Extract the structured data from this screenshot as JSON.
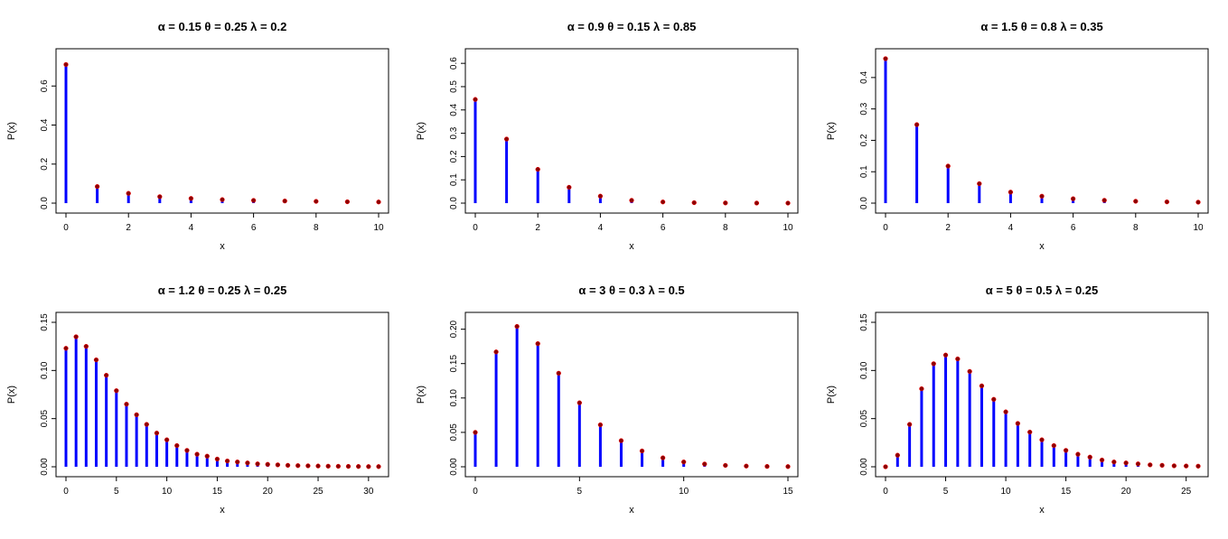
{
  "chart_data": [
    {
      "type": "bar",
      "title": "α = 0.15  θ = 0.25  λ = 0.2",
      "xlabel": "x",
      "ylabel": "P(x)",
      "xlim": [
        0,
        10
      ],
      "ylim": [
        0,
        0.74
      ],
      "xticks": [
        0,
        2,
        4,
        6,
        8,
        10
      ],
      "yticks": [
        0.0,
        0.2,
        0.4,
        0.6
      ],
      "ytick_labels": [
        "0.0",
        "0.2",
        "0.4",
        "0.6"
      ],
      "x": [
        0,
        1,
        2,
        3,
        4,
        5,
        6,
        7,
        8,
        9,
        10
      ],
      "values": [
        0.71,
        0.085,
        0.05,
        0.033,
        0.024,
        0.018,
        0.014,
        0.011,
        0.009,
        0.007,
        0.006
      ]
    },
    {
      "type": "bar",
      "title": "α = 0.9  θ = 0.15  λ = 0.85",
      "xlabel": "x",
      "ylabel": "P(x)",
      "xlim": [
        0,
        10
      ],
      "ylim": [
        0,
        0.62
      ],
      "xticks": [
        0,
        2,
        4,
        6,
        8,
        10
      ],
      "yticks": [
        0.0,
        0.1,
        0.2,
        0.3,
        0.4,
        0.5,
        0.6
      ],
      "ytick_labels": [
        "0.0",
        "0.1",
        "0.2",
        "0.3",
        "0.4",
        "0.5",
        "0.6"
      ],
      "x": [
        0,
        1,
        2,
        3,
        4,
        5,
        6,
        7,
        8,
        9,
        10
      ],
      "values": [
        0.445,
        0.275,
        0.145,
        0.068,
        0.03,
        0.012,
        0.005,
        0.002,
        0.0008,
        0.0003,
        0.0001
      ]
    },
    {
      "type": "bar",
      "title": "α = 1.5  θ = 0.8  λ = 0.35",
      "xlabel": "x",
      "ylabel": "P(x)",
      "xlim": [
        0,
        10
      ],
      "ylim": [
        0,
        0.46
      ],
      "xticks": [
        0,
        2,
        4,
        6,
        8,
        10
      ],
      "yticks": [
        0.0,
        0.1,
        0.2,
        0.3,
        0.4
      ],
      "ytick_labels": [
        "0.0",
        "0.1",
        "0.2",
        "0.3",
        "0.4"
      ],
      "x": [
        0,
        1,
        2,
        3,
        4,
        5,
        6,
        7,
        8,
        9,
        10
      ],
      "values": [
        0.46,
        0.25,
        0.118,
        0.062,
        0.035,
        0.022,
        0.014,
        0.009,
        0.006,
        0.004,
        0.003
      ]
    },
    {
      "type": "bar",
      "title": "α = 1.2  θ = 0.25  λ = 0.25",
      "xlabel": "x",
      "ylabel": "P(x)",
      "xlim": [
        0,
        31
      ],
      "ylim": [
        0,
        0.15
      ],
      "xticks": [
        0,
        5,
        10,
        15,
        20,
        25,
        30
      ],
      "yticks": [
        0.0,
        0.05,
        0.1,
        0.15
      ],
      "ytick_labels": [
        "0.00",
        "0.05",
        "0.10",
        "0.15"
      ],
      "x": [
        0,
        1,
        2,
        3,
        4,
        5,
        6,
        7,
        8,
        9,
        10,
        11,
        12,
        13,
        14,
        15,
        16,
        17,
        18,
        19,
        20,
        21,
        22,
        23,
        24,
        25,
        26,
        27,
        28,
        29,
        30,
        31
      ],
      "values": [
        0.123,
        0.135,
        0.125,
        0.111,
        0.095,
        0.079,
        0.065,
        0.054,
        0.044,
        0.035,
        0.028,
        0.022,
        0.017,
        0.013,
        0.011,
        0.008,
        0.006,
        0.005,
        0.004,
        0.003,
        0.0025,
        0.002,
        0.0015,
        0.0012,
        0.001,
        0.0008,
        0.0006,
        0.0005,
        0.0004,
        0.0003,
        0.0002,
        0.0002
      ]
    },
    {
      "type": "bar",
      "title": "α = 3  θ = 0.3  λ = 0.5",
      "xlabel": "x",
      "ylabel": "P(x)",
      "xlim": [
        0,
        15
      ],
      "ylim": [
        0,
        0.21
      ],
      "xticks": [
        0,
        5,
        10,
        15
      ],
      "yticks": [
        0.0,
        0.05,
        0.1,
        0.15,
        0.2
      ],
      "ytick_labels": [
        "0.00",
        "0.05",
        "0.10",
        "0.15",
        "0.20"
      ],
      "x": [
        0,
        1,
        2,
        3,
        4,
        5,
        6,
        7,
        8,
        9,
        10,
        11,
        12,
        13,
        14,
        15
      ],
      "values": [
        0.05,
        0.167,
        0.204,
        0.179,
        0.136,
        0.093,
        0.061,
        0.038,
        0.023,
        0.013,
        0.007,
        0.004,
        0.002,
        0.001,
        0.0005,
        0.0003
      ]
    },
    {
      "type": "bar",
      "title": "α = 5  θ = 0.5  λ = 0.25",
      "xlabel": "x",
      "ylabel": "P(x)",
      "xlim": [
        0,
        26
      ],
      "ylim": [
        0,
        0.15
      ],
      "xticks": [
        0,
        5,
        10,
        15,
        20,
        25
      ],
      "yticks": [
        0.0,
        0.05,
        0.1,
        0.15
      ],
      "ytick_labels": [
        "0.00",
        "0.05",
        "0.10",
        "0.15"
      ],
      "x": [
        0,
        1,
        2,
        3,
        4,
        5,
        6,
        7,
        8,
        9,
        10,
        11,
        12,
        13,
        14,
        15,
        16,
        17,
        18,
        19,
        20,
        21,
        22,
        23,
        24,
        25,
        26
      ],
      "values": [
        0.0,
        0.012,
        0.044,
        0.081,
        0.107,
        0.116,
        0.112,
        0.099,
        0.084,
        0.07,
        0.057,
        0.045,
        0.036,
        0.028,
        0.022,
        0.017,
        0.013,
        0.01,
        0.007,
        0.005,
        0.004,
        0.003,
        0.002,
        0.0015,
        0.001,
        0.0008,
        0.0006
      ]
    }
  ]
}
